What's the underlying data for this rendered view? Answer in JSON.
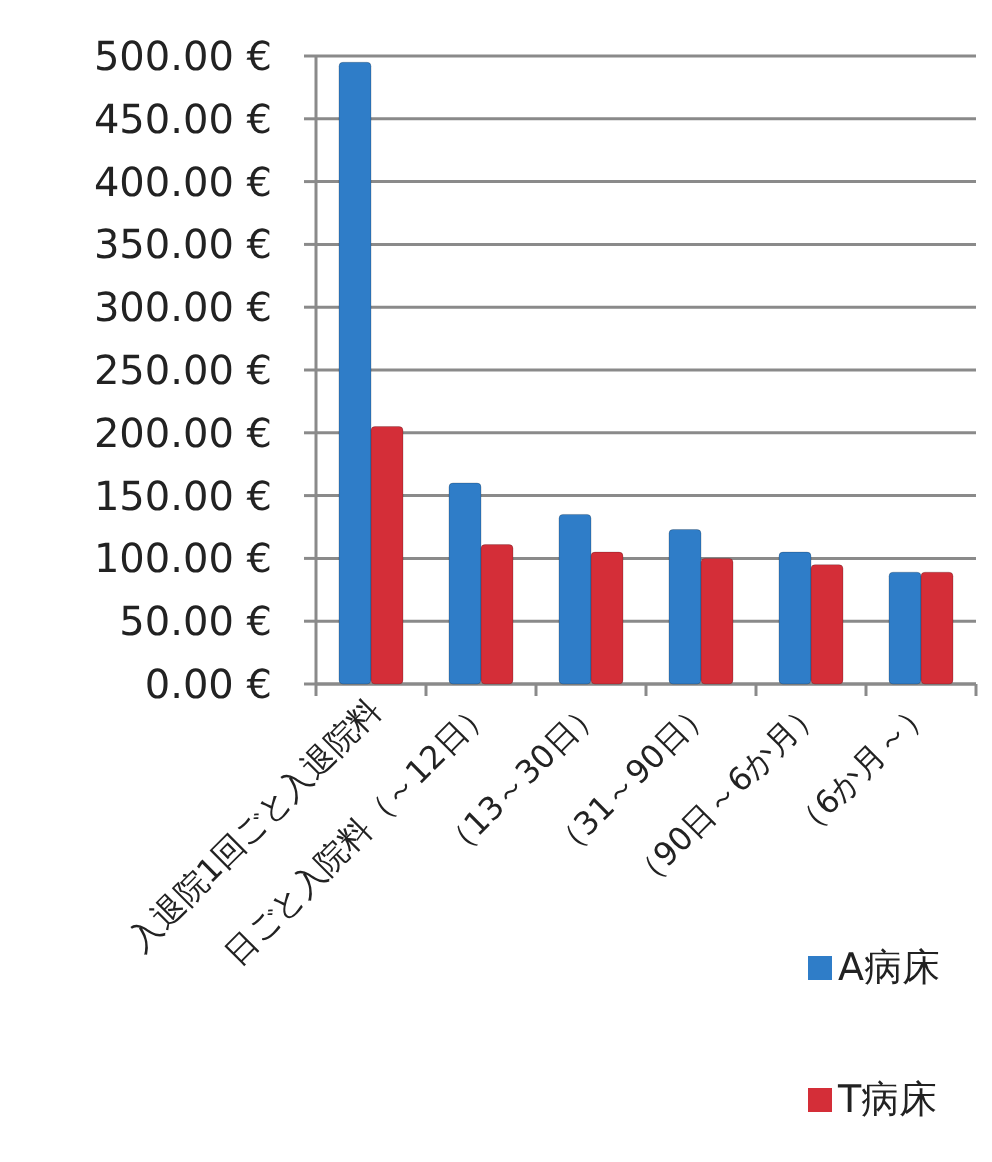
{
  "chart_data": {
    "type": "bar",
    "categories": [
      "入退院1回ごと入退院料",
      "日ごと入院料（～12日）",
      "（13～30日）",
      "（31～90日）",
      "（90日～6か月）",
      "（6か月～）"
    ],
    "series": [
      {
        "name": "A病床",
        "color": "#2f7dc8",
        "values": [
          495,
          160,
          135,
          123,
          105,
          89
        ]
      },
      {
        "name": "T病床",
        "color": "#d42e38",
        "values": [
          205,
          111,
          105,
          100,
          95,
          89
        ]
      }
    ],
    "ylim": [
      0,
      500
    ],
    "yticks": [
      {
        "value": 0,
        "label": "0.00 €"
      },
      {
        "value": 50,
        "label": "50.00 €"
      },
      {
        "value": 100,
        "label": "100.00 €"
      },
      {
        "value": 150,
        "label": "150.00 €"
      },
      {
        "value": 200,
        "label": "200.00 €"
      },
      {
        "value": 250,
        "label": "250.00 €"
      },
      {
        "value": 300,
        "label": "300.00 €"
      },
      {
        "value": 350,
        "label": "350.00 €"
      },
      {
        "value": 400,
        "label": "400.00 €"
      },
      {
        "value": 450,
        "label": "450.00 €"
      },
      {
        "value": 500,
        "label": "500.00 €"
      }
    ],
    "grid": "y",
    "legend": "bottom right"
  }
}
